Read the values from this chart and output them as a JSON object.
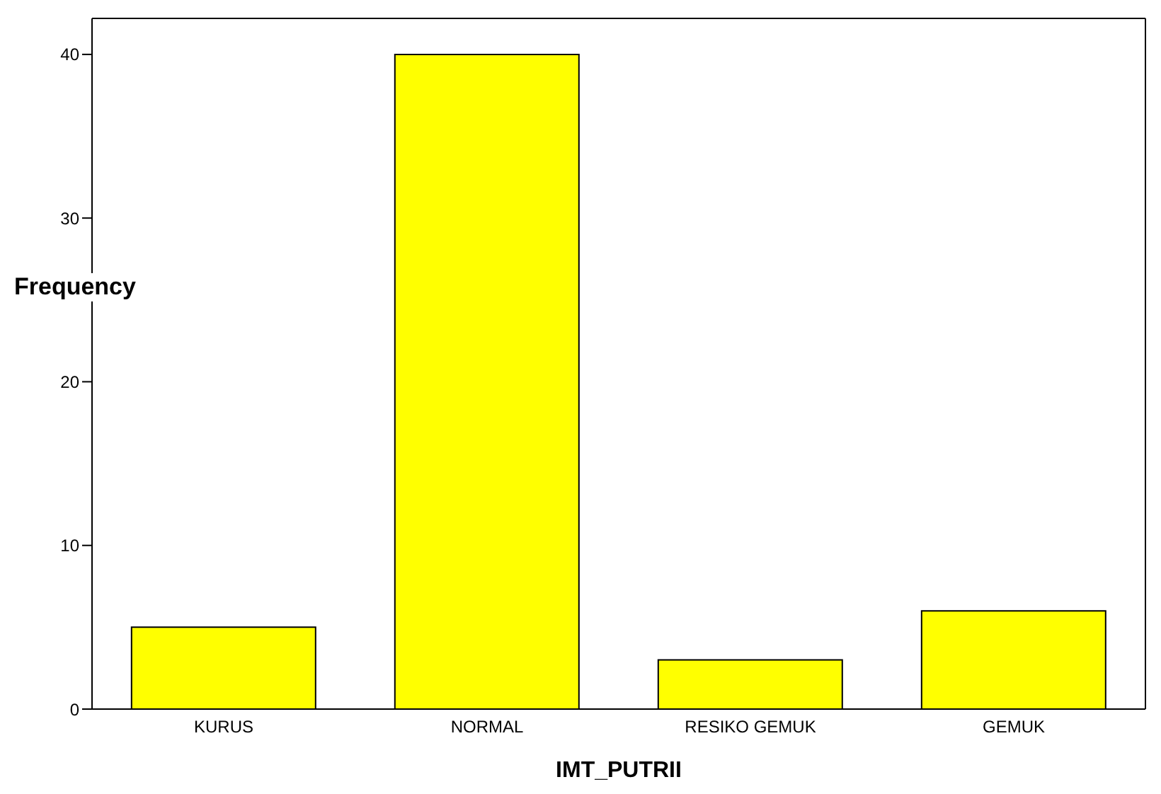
{
  "chart_data": {
    "type": "bar",
    "xlabel": "IMT_PUTRII",
    "ylabel": "Frequency",
    "categories": [
      "KURUS",
      "NORMAL",
      "RESIKO GEMUK",
      "GEMUK"
    ],
    "values": [
      5,
      40,
      3,
      6
    ],
    "color": "#ffff00",
    "ylim": [
      0,
      42.2
    ],
    "yticks": [
      0,
      10,
      20,
      30,
      40
    ],
    "grid": false,
    "legend": false
  }
}
